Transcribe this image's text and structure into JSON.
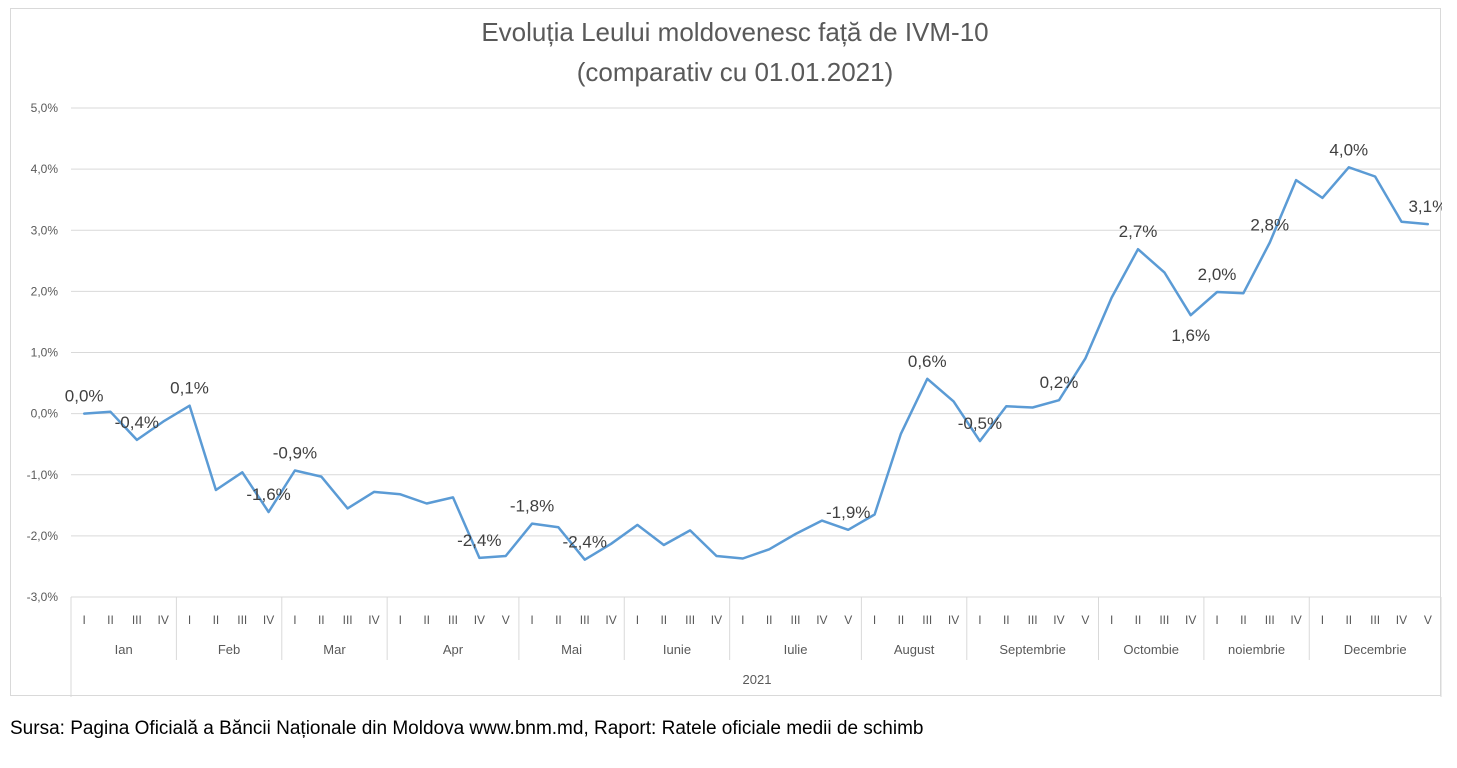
{
  "chart_data": {
    "type": "line",
    "title": "Evoluția Leului moldovenesc față de IVM-10",
    "subtitle": "(comparativ cu 01.01.2021)",
    "year_label": "2021",
    "y_axis": {
      "min": -3.0,
      "max": 5.0,
      "step": 1.0,
      "tick_labels": [
        "-3,0%",
        "-2,0%",
        "-1,0%",
        "0,0%",
        "1,0%",
        "2,0%",
        "3,0%",
        "4,0%",
        "5,0%"
      ]
    },
    "grid": true,
    "legend": "none",
    "line_color": "#5b9bd5",
    "months": [
      {
        "name": "Ian",
        "weeks": [
          "I",
          "II",
          "III",
          "IV"
        ]
      },
      {
        "name": "Feb",
        "weeks": [
          "I",
          "II",
          "III",
          "IV"
        ]
      },
      {
        "name": "Mar",
        "weeks": [
          "I",
          "II",
          "III",
          "IV"
        ]
      },
      {
        "name": "Apr",
        "weeks": [
          "I",
          "II",
          "III",
          "IV",
          "V"
        ]
      },
      {
        "name": "Mai",
        "weeks": [
          "I",
          "II",
          "III",
          "IV"
        ]
      },
      {
        "name": "Iunie",
        "weeks": [
          "I",
          "II",
          "III",
          "IV"
        ]
      },
      {
        "name": "Iulie",
        "weeks": [
          "I",
          "II",
          "III",
          "IV",
          "V"
        ]
      },
      {
        "name": "August",
        "weeks": [
          "I",
          "II",
          "III",
          "IV"
        ]
      },
      {
        "name": "Septembrie",
        "weeks": [
          "I",
          "II",
          "III",
          "IV",
          "V"
        ]
      },
      {
        "name": "Octombie",
        "weeks": [
          "I",
          "II",
          "III",
          "IV"
        ]
      },
      {
        "name": "noiembrie",
        "weeks": [
          "I",
          "II",
          "III",
          "IV"
        ]
      },
      {
        "name": "Decembrie",
        "weeks": [
          "I",
          "II",
          "III",
          "IV",
          "V"
        ]
      }
    ],
    "values": [
      0.0,
      0.03,
      -0.43,
      -0.13,
      0.13,
      -1.25,
      -0.96,
      -1.61,
      -0.93,
      -1.03,
      -1.55,
      -1.28,
      -1.32,
      -1.47,
      -1.37,
      -2.36,
      -2.33,
      -1.8,
      -1.86,
      -2.39,
      -2.13,
      -1.82,
      -2.15,
      -1.91,
      -2.33,
      -2.37,
      -2.22,
      -1.97,
      -1.75,
      -1.9,
      -1.65,
      -0.33,
      0.57,
      0.2,
      -0.45,
      0.12,
      0.1,
      0.22,
      0.9,
      1.9,
      2.69,
      2.31,
      1.61,
      1.99,
      1.97,
      2.8,
      3.82,
      3.53,
      4.03,
      3.88,
      3.14,
      3.1
    ],
    "data_labels": [
      {
        "index": 0,
        "text": "0,0%",
        "position": "above"
      },
      {
        "index": 2,
        "text": "-0,4%",
        "position": "above"
      },
      {
        "index": 4,
        "text": "0,1%",
        "position": "above"
      },
      {
        "index": 7,
        "text": "-1,6%",
        "position": "above"
      },
      {
        "index": 8,
        "text": "-0,9%",
        "position": "above"
      },
      {
        "index": 15,
        "text": "-2,4%",
        "position": "above"
      },
      {
        "index": 17,
        "text": "-1,8%",
        "position": "above"
      },
      {
        "index": 19,
        "text": "-2,4%",
        "position": "above"
      },
      {
        "index": 29,
        "text": "-1,9%",
        "position": "above"
      },
      {
        "index": 32,
        "text": "0,6%",
        "position": "above"
      },
      {
        "index": 34,
        "text": "-0,5%",
        "position": "above"
      },
      {
        "index": 37,
        "text": "0,2%",
        "position": "above"
      },
      {
        "index": 40,
        "text": "2,7%",
        "position": "above"
      },
      {
        "index": 42,
        "text": "1,6%",
        "position": "below"
      },
      {
        "index": 43,
        "text": "2,0%",
        "position": "above"
      },
      {
        "index": 45,
        "text": "2,8%",
        "position": "above"
      },
      {
        "index": 48,
        "text": "4,0%",
        "position": "above"
      },
      {
        "index": 51,
        "text": "3,1%",
        "position": "above"
      }
    ]
  },
  "source_note": "Sursa: Pagina Oficială a Băncii Naționale din Moldova www.bnm.md, Raport: Ratele oficiale medii de schimb"
}
